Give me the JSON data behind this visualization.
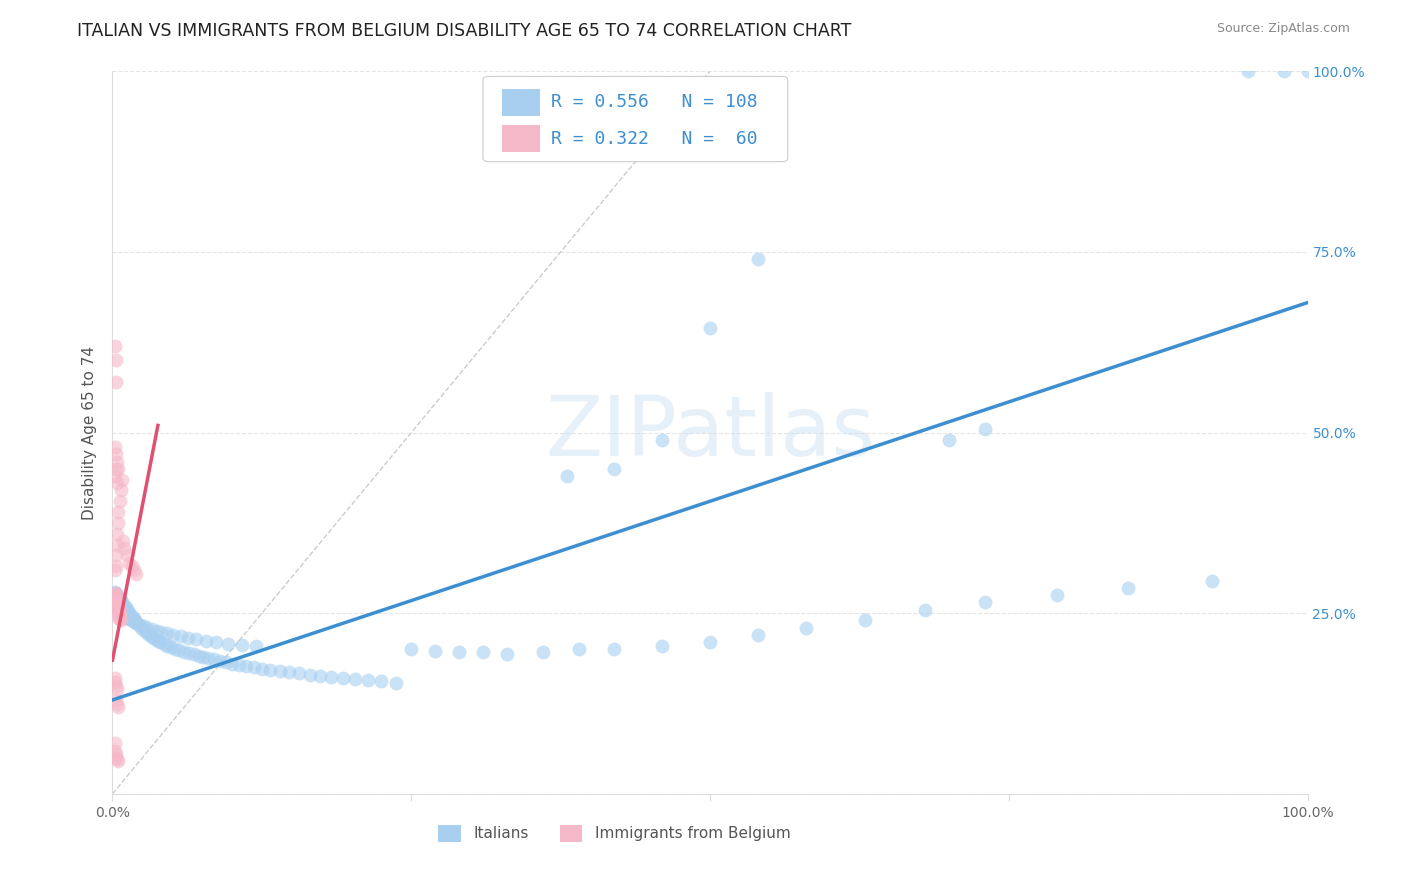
{
  "title": "ITALIAN VS IMMIGRANTS FROM BELGIUM DISABILITY AGE 65 TO 74 CORRELATION CHART",
  "source": "Source: ZipAtlas.com",
  "ylabel": "Disability Age 65 to 74",
  "watermark": "ZIPatlas",
  "blue_r": "0.556",
  "blue_n": "108",
  "pink_r": "0.322",
  "pink_n": "60",
  "blue_color": "#A8CFF0",
  "pink_color": "#F5B8C8",
  "blue_line_color": "#3D8FD1",
  "pink_line_color": "#E05070",
  "dashed_line_color": "#CCCCCC",
  "blue_scatter_x": [
    0.002,
    0.003,
    0.004,
    0.005,
    0.006,
    0.007,
    0.008,
    0.009,
    0.01,
    0.011,
    0.012,
    0.013,
    0.014,
    0.015,
    0.016,
    0.017,
    0.018,
    0.019,
    0.02,
    0.022,
    0.024,
    0.026,
    0.028,
    0.03,
    0.032,
    0.034,
    0.036,
    0.038,
    0.04,
    0.043,
    0.046,
    0.049,
    0.052,
    0.056,
    0.06,
    0.064,
    0.068,
    0.072,
    0.076,
    0.08,
    0.085,
    0.09,
    0.095,
    0.1,
    0.106,
    0.112,
    0.118,
    0.125,
    0.132,
    0.14,
    0.148,
    0.156,
    0.165,
    0.174,
    0.183,
    0.193,
    0.203,
    0.214,
    0.225,
    0.237,
    0.002,
    0.003,
    0.004,
    0.005,
    0.006,
    0.007,
    0.008,
    0.009,
    0.01,
    0.012,
    0.014,
    0.016,
    0.018,
    0.02,
    0.023,
    0.026,
    0.029,
    0.033,
    0.037,
    0.041,
    0.046,
    0.051,
    0.057,
    0.063,
    0.07,
    0.078,
    0.087,
    0.097,
    0.108,
    0.12,
    0.25,
    0.27,
    0.29,
    0.31,
    0.33,
    0.36,
    0.39,
    0.42,
    0.46,
    0.5,
    0.54,
    0.58,
    0.63,
    0.68,
    0.73,
    0.79,
    0.85,
    0.92
  ],
  "blue_scatter_y": [
    0.28,
    0.278,
    0.275,
    0.272,
    0.27,
    0.268,
    0.265,
    0.262,
    0.26,
    0.258,
    0.255,
    0.253,
    0.25,
    0.248,
    0.246,
    0.244,
    0.242,
    0.24,
    0.238,
    0.234,
    0.23,
    0.227,
    0.224,
    0.221,
    0.218,
    0.216,
    0.214,
    0.212,
    0.21,
    0.207,
    0.205,
    0.203,
    0.201,
    0.199,
    0.197,
    0.195,
    0.193,
    0.191,
    0.19,
    0.188,
    0.186,
    0.184,
    0.182,
    0.18,
    0.178,
    0.177,
    0.175,
    0.173,
    0.172,
    0.17,
    0.168,
    0.167,
    0.165,
    0.163,
    0.162,
    0.16,
    0.159,
    0.157,
    0.156,
    0.154,
    0.262,
    0.26,
    0.258,
    0.256,
    0.254,
    0.252,
    0.25,
    0.248,
    0.246,
    0.244,
    0.242,
    0.24,
    0.238,
    0.236,
    0.234,
    0.232,
    0.23,
    0.228,
    0.226,
    0.224,
    0.222,
    0.22,
    0.218,
    0.216,
    0.214,
    0.212,
    0.21,
    0.208,
    0.206,
    0.204,
    0.2,
    0.198,
    0.196,
    0.196,
    0.194,
    0.196,
    0.2,
    0.2,
    0.205,
    0.21,
    0.22,
    0.23,
    0.24,
    0.255,
    0.265,
    0.275,
    0.285,
    0.295
  ],
  "blue_scatter_outliers_x": [
    0.38,
    0.42,
    0.46,
    0.5,
    0.54,
    0.7,
    0.73,
    0.95,
    0.98,
    1.0
  ],
  "blue_scatter_outliers_y": [
    0.44,
    0.45,
    0.49,
    0.645,
    0.74,
    0.49,
    0.505,
    1.0,
    1.0,
    1.0
  ],
  "pink_scatter_x": [
    0.002,
    0.003,
    0.004,
    0.002,
    0.003,
    0.004,
    0.002,
    0.003,
    0.005,
    0.003,
    0.004,
    0.005,
    0.006,
    0.004,
    0.005,
    0.006,
    0.007,
    0.005,
    0.006,
    0.007,
    0.002,
    0.003,
    0.003,
    0.004,
    0.004,
    0.005,
    0.005,
    0.006,
    0.007,
    0.008,
    0.009,
    0.01,
    0.012,
    0.014,
    0.016,
    0.018,
    0.02,
    0.002,
    0.003,
    0.003,
    0.002,
    0.002,
    0.003,
    0.004,
    0.003,
    0.004,
    0.005,
    0.002,
    0.003,
    0.004,
    0.002,
    0.003,
    0.004,
    0.005,
    0.002,
    0.002,
    0.003,
    0.003,
    0.004,
    0.005
  ],
  "pink_scatter_y": [
    0.278,
    0.276,
    0.274,
    0.272,
    0.27,
    0.268,
    0.266,
    0.264,
    0.262,
    0.26,
    0.258,
    0.256,
    0.254,
    0.252,
    0.25,
    0.248,
    0.246,
    0.244,
    0.242,
    0.24,
    0.31,
    0.315,
    0.33,
    0.345,
    0.36,
    0.375,
    0.39,
    0.405,
    0.42,
    0.435,
    0.35,
    0.34,
    0.33,
    0.32,
    0.315,
    0.31,
    0.305,
    0.62,
    0.6,
    0.57,
    0.16,
    0.155,
    0.15,
    0.145,
    0.13,
    0.125,
    0.12,
    0.44,
    0.45,
    0.43,
    0.48,
    0.47,
    0.46,
    0.45,
    0.07,
    0.06,
    0.055,
    0.05,
    0.048,
    0.045
  ],
  "blue_line_x": [
    0.0,
    1.0
  ],
  "blue_line_y": [
    0.13,
    0.68
  ],
  "pink_line_x": [
    0.0,
    0.038
  ],
  "pink_line_y": [
    0.185,
    0.51
  ],
  "diag_line_x": [
    0.0,
    0.5
  ],
  "diag_line_y": [
    0.0,
    1.0
  ],
  "xlim": [
    0.0,
    1.0
  ],
  "ylim": [
    0.0,
    1.0
  ],
  "xticks": [
    0.0,
    0.25,
    0.5,
    0.75,
    1.0
  ],
  "xticklabels": [
    "0.0%",
    "",
    "",
    "",
    "100.0%"
  ],
  "yticks": [
    0.0,
    0.25,
    0.5,
    0.75,
    1.0
  ],
  "right_yticklabels": [
    "",
    "25.0%",
    "50.0%",
    "75.0%",
    "100.0%"
  ],
  "title_fontsize": 12.5,
  "label_color": "#555555",
  "tick_color": "#666666",
  "grid_color": "#E5E5E5",
  "spine_color": "#DDDDDD",
  "right_tick_color": "#3D8FD1",
  "legend_box_color": "#CCCCCC"
}
